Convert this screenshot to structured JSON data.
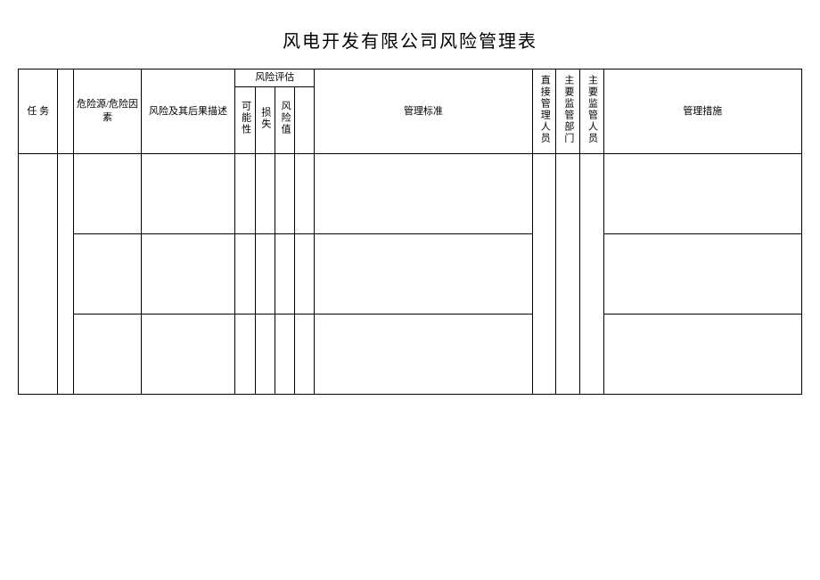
{
  "title": "风电开发有限公司风险管理表",
  "columns": {
    "col1": "任 务",
    "col2": "",
    "col3": "危险源/危险因素",
    "col4": "风险及其后果描述",
    "col5_group": "风险评估",
    "col5a": "可能性",
    "col5b": "损失",
    "col5c": "风险值",
    "col5d": "",
    "col6": "管理标准",
    "col7": "直接管理人员",
    "col8": "主要监管部门",
    "col9": "主要监管人员",
    "col10": "管理措施"
  },
  "widths": {
    "c1": 40,
    "c2": 16,
    "c3": 68,
    "c4": 95,
    "c5a": 20,
    "c5b": 20,
    "c5c": 20,
    "c5d": 20,
    "c6": 220,
    "c7": 24,
    "c8": 24,
    "c9": 24,
    "c10": 200
  },
  "rows": [
    {
      "c1": "",
      "c2": "",
      "c3": "",
      "c4": "",
      "c5a": "",
      "c5b": "",
      "c5c": "",
      "c5d": "",
      "c6": "",
      "c7": "",
      "c8": "",
      "c9": "",
      "c10": ""
    },
    {
      "c1": "",
      "c2": "",
      "c3": "",
      "c4": "",
      "c5a": "",
      "c5b": "",
      "c5c": "",
      "c5d": "",
      "c6": "",
      "c7": "",
      "c8": "",
      "c9": "",
      "c10": ""
    },
    {
      "c1": "",
      "c2": "",
      "c3": "",
      "c4": "",
      "c5a": "",
      "c5b": "",
      "c5c": "",
      "c5d": "",
      "c6": "",
      "c7": "",
      "c8": "",
      "c9": "",
      "c10": ""
    }
  ]
}
